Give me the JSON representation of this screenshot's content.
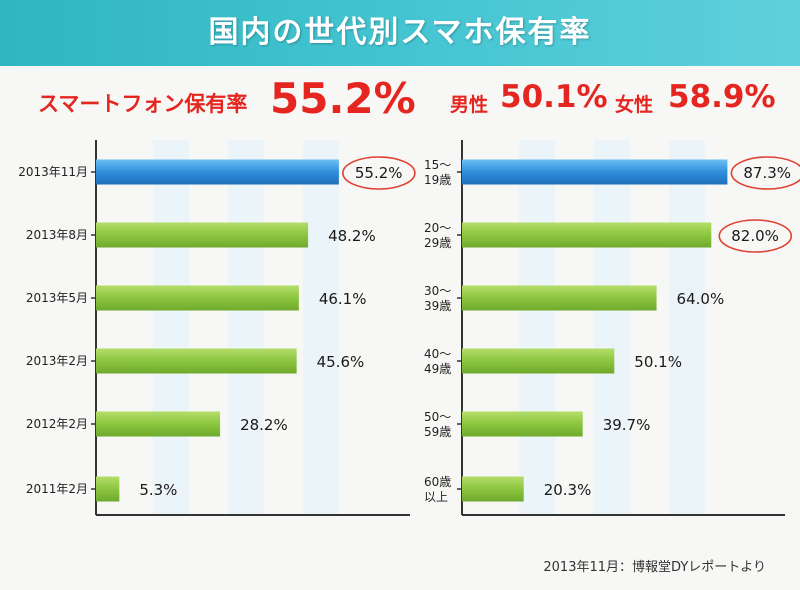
{
  "banner": {
    "title": "国内の世代別スマホ保有率"
  },
  "headline": {
    "label": "スマートフォン保有率",
    "value": "55.2%",
    "male_label": "男性",
    "male_value": "50.1%",
    "female_label": "女性",
    "female_value": "58.9%"
  },
  "colors": {
    "banner": "#3cc0cc",
    "accent_red": "#e52620",
    "highlight_bar": "#2f8fdc",
    "bar_green": "#8cc63f",
    "circle": "#e04030"
  },
  "source": "2013年11月：博報堂DYレポートより",
  "chart_data": [
    {
      "type": "bar",
      "orientation": "horizontal",
      "categories": [
        "2013年11月",
        "2013年8月",
        "2013年5月",
        "2013年2月",
        "2012年2月",
        "2011年2月"
      ],
      "values": [
        55.2,
        48.2,
        46.1,
        45.6,
        28.2,
        5.3
      ],
      "value_labels": [
        "55.2%",
        "48.2%",
        "46.1%",
        "45.6%",
        "28.2%",
        "5.3%"
      ],
      "highlight_index": 0,
      "circled_indices": [
        0
      ],
      "xlim": [
        0,
        100
      ],
      "grid": false
    },
    {
      "type": "bar",
      "orientation": "horizontal",
      "categories": [
        [
          "15～",
          "19歳"
        ],
        [
          "20～",
          "29歳"
        ],
        [
          "30～",
          "39歳"
        ],
        [
          "40～",
          "49歳"
        ],
        [
          "50～",
          "59歳"
        ],
        [
          "60歳",
          "以上"
        ]
      ],
      "values": [
        87.3,
        82.0,
        64.0,
        50.1,
        39.7,
        20.3
      ],
      "value_labels": [
        "87.3%",
        "82.0%",
        "64.0%",
        "50.1%",
        "39.7%",
        "20.3%"
      ],
      "highlight_index": 0,
      "circled_indices": [
        0,
        1
      ],
      "xlim": [
        0,
        100
      ],
      "grid": false
    }
  ]
}
